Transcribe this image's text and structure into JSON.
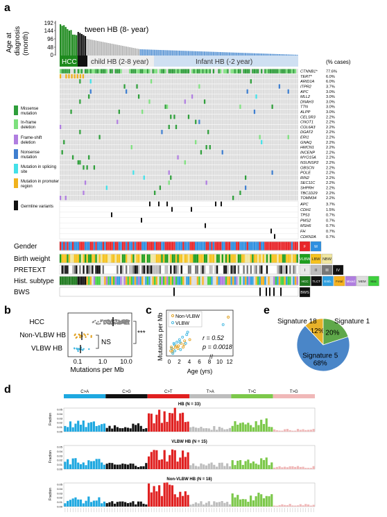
{
  "panel_letters": {
    "a": "a",
    "b": "b",
    "c": "c",
    "d": "d",
    "e": "e"
  },
  "panel_a": {
    "y_axis_label_line1": "Age at",
    "y_axis_label_line2": "diagnosis",
    "y_axis_label_line3": "(month)",
    "y_ticks": [
      "192",
      "144",
      "96",
      "48",
      "0"
    ],
    "tween_label": "tween HB (8- year)",
    "groups": [
      {
        "label": "HCC",
        "fill": "#1e8a1e",
        "text_color": "#ffffff"
      },
      {
        "label": "",
        "fill": "#111111",
        "text_color": "#ffffff"
      },
      {
        "label": "child HB (2-8 year)",
        "fill": "#eeeeee",
        "text_color": "#333333"
      },
      {
        "label": "Infant HB (-2 year)",
        "fill": "#cfe0f2",
        "text_color": "#333333"
      }
    ],
    "pct_header": "(% cases)",
    "genes": [
      {
        "name": "CTNNB1*",
        "pct": "77.6%"
      },
      {
        "name": "TERT*",
        "pct": "6.0%"
      },
      {
        "name": "ARID1A",
        "pct": "6.0%"
      },
      {
        "name": "ITPR2",
        "pct": "3.7%"
      },
      {
        "name": "APC",
        "pct": "3.0%"
      },
      {
        "name": "MLL2",
        "pct": "3.0%"
      },
      {
        "name": "DNAH3",
        "pct": "3.0%"
      },
      {
        "name": "TTN",
        "pct": "3.0%"
      },
      {
        "name": "ALPP",
        "pct": "3.0%"
      },
      {
        "name": "CELSR3",
        "pct": "2.2%"
      },
      {
        "name": "CNOT1",
        "pct": "2.2%"
      },
      {
        "name": "COL6A3",
        "pct": "2.2%"
      },
      {
        "name": "DGAT2",
        "pct": "2.2%"
      },
      {
        "name": "ERI1",
        "pct": "2.2%"
      },
      {
        "name": "GNAQ",
        "pct": "2.2%"
      },
      {
        "name": "HMCN1",
        "pct": "2.2%"
      },
      {
        "name": "INCENP",
        "pct": "2.2%"
      },
      {
        "name": "MYO15A",
        "pct": "2.2%"
      },
      {
        "name": "NSUNSP2",
        "pct": "2.2%"
      },
      {
        "name": "OBSCN",
        "pct": "2.2%"
      },
      {
        "name": "POLE",
        "pct": "2.2%"
      },
      {
        "name": "RIN2",
        "pct": "2.2%"
      },
      {
        "name": "SEC11C",
        "pct": "2.2%"
      },
      {
        "name": "SHPRH",
        "pct": "2.2%"
      },
      {
        "name": "TBC1D29",
        "pct": "2.2%"
      },
      {
        "name": "TOMM34",
        "pct": "2.2%"
      }
    ],
    "germline_genes": [
      {
        "name": "APC",
        "pct": "3.7%"
      },
      {
        "name": "CDH1",
        "pct": "1.5%"
      },
      {
        "name": "TP53",
        "pct": "0.7%"
      },
      {
        "name": "PMS2",
        "pct": "0.7%"
      },
      {
        "name": "MSH6",
        "pct": "0.7%"
      },
      {
        "name": "FH",
        "pct": "0.7%"
      },
      {
        "name": "CDKN2A",
        "pct": "0.7%"
      }
    ],
    "mutation_legend": [
      {
        "label": "Missense mutation",
        "color": "#2e9e3a"
      },
      {
        "label": "In-frame deletion",
        "color": "#7ee07e"
      },
      {
        "label": "Frame-shift deletion",
        "color": "#b07ee0"
      },
      {
        "label": "Nonsense mutation",
        "color": "#3f7fd0"
      },
      {
        "label": "Mutation in splicing site",
        "color": "#44e0e8"
      },
      {
        "label": "Mutation in promoter region",
        "color": "#f0b21e"
      }
    ],
    "germline_label": "Germline variants",
    "clinical_tracks": [
      {
        "label": "Gender",
        "legend": [
          {
            "text": "F",
            "color": "#e8262a"
          },
          {
            "text": "M",
            "color": "#2e8fe0"
          }
        ]
      },
      {
        "label": "Birth weight",
        "legend": [
          {
            "text": "VLBW",
            "color": "#1e9e1e"
          },
          {
            "text": "LBW",
            "color": "#f6c21e"
          },
          {
            "text": "NBW",
            "color": "#f0e6a0"
          }
        ]
      },
      {
        "label": "PRETEXT",
        "legend": [
          {
            "text": "I",
            "color": "#e8e8e8"
          },
          {
            "text": "II",
            "color": "#bdbdbd"
          },
          {
            "text": "III",
            "color": "#777777"
          },
          {
            "text": "IV",
            "color": "#111111"
          }
        ]
      },
      {
        "label": "Hist. subtype",
        "legend": [
          {
            "text": "HCC",
            "color": "#1f7a1f"
          },
          {
            "text": "TLCT",
            "color": "#111111"
          },
          {
            "text": "Emb.",
            "color": "#2e9fe0"
          },
          {
            "text": "Fetal",
            "color": "#f6b21e"
          },
          {
            "text": "Mixed",
            "color": "#b07ee0"
          },
          {
            "text": "MEM",
            "color": "#dddddd"
          },
          {
            "text": "Mac",
            "color": "#3fd03f"
          }
        ]
      },
      {
        "label": "BWS",
        "legend": [
          {
            "text": "BWS",
            "color": "#111111"
          }
        ]
      }
    ]
  },
  "panel_b": {
    "groups": [
      "HCC",
      "Non-VLBW HB",
      "VLBW HB"
    ],
    "xlabel": "Mutations per Mb",
    "x_ticks": [
      "0.1",
      "1.0",
      "10.0"
    ],
    "sig_hcc": "***",
    "sig_hb": "NS"
  },
  "panel_c": {
    "ylabel": "Mutations per Mb",
    "xlabel": "Age (yrs)",
    "x_ticks": [
      "0",
      "2",
      "4",
      "6",
      "8",
      "10",
      "12"
    ],
    "legend": [
      {
        "name": "Non-VLBW",
        "color": "#e0a020"
      },
      {
        "name": "VLBW",
        "color": "#3fb6e0"
      }
    ],
    "r_text": "r = 0.52",
    "p_text": "p = 0.0018"
  },
  "panel_d": {
    "categories": [
      "C>A",
      "C>G",
      "C>T",
      "T>A",
      "T>C",
      "T>G"
    ],
    "category_colors": [
      "#1ea8e0",
      "#111111",
      "#e02020",
      "#bdbdbd",
      "#7cc84a",
      "#f0b8b8"
    ],
    "y_label": "Fraction",
    "y_ticks": [
      "0.05",
      "0.04",
      "0.03",
      "0.02",
      "0.01",
      "0.00"
    ],
    "subplots": [
      {
        "title": "HB (N = 33)"
      },
      {
        "title": "VLBW HB (N = 15)"
      },
      {
        "title": "Non-VLBW HB (N = 18)"
      }
    ]
  },
  "chart_data": {
    "type": "pie",
    "labels": [
      "Signature 1",
      "Signature 5",
      "Signature 18"
    ],
    "values": [
      20,
      68,
      12
    ],
    "value_labels": [
      "20%",
      "68%",
      "12%"
    ],
    "colors": [
      "#5fa84a",
      "#4a86c8",
      "#e8b22a"
    ]
  }
}
